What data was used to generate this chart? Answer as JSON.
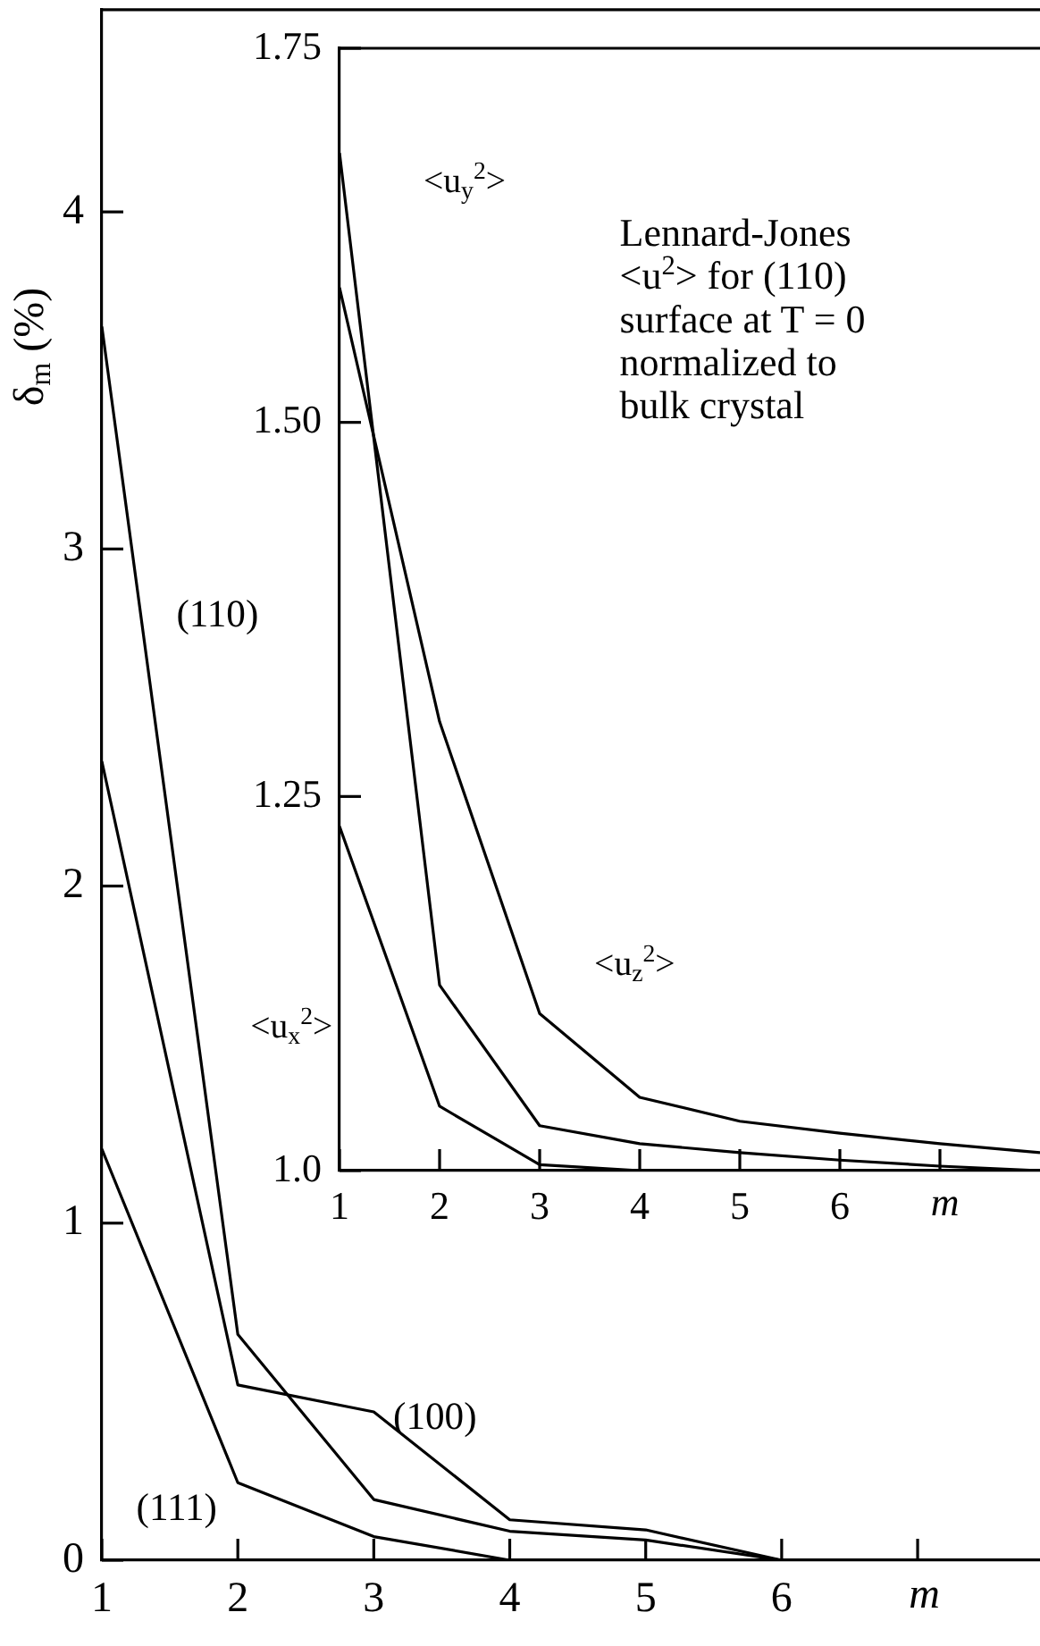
{
  "chart_data": [
    {
      "type": "line",
      "ylabel": "δ$_{m}$ (%)",
      "xlabel": "m",
      "x": [
        1,
        2,
        3,
        4,
        5,
        6,
        7,
        7.9
      ],
      "xlim": [
        1,
        7.9
      ],
      "xticks": [
        1,
        2,
        3,
        4,
        5,
        6,
        {
          "value": 7,
          "label": null
        }
      ],
      "ylim": [
        0,
        4.6
      ],
      "yticks": [
        0,
        1,
        2,
        3,
        4
      ],
      "grid": false,
      "legend": false,
      "series": [
        {
          "name": "(110)",
          "color": "#000000",
          "values": [
            3.66,
            0.67,
            0.18,
            0.086,
            0.06,
            0,
            0,
            0
          ]
        },
        {
          "name": "(100)",
          "color": "#000000",
          "values": [
            2.37,
            0.52,
            0.44,
            0.12,
            0.09,
            0,
            0,
            0
          ]
        },
        {
          "name": "(111)",
          "color": "#000000",
          "values": [
            1.22,
            0.23,
            0.07,
            0,
            0,
            0,
            0,
            0
          ]
        }
      ]
    },
    {
      "type": "line",
      "xlabel": "m",
      "x": [
        1,
        2,
        3,
        4,
        5,
        6,
        7,
        8
      ],
      "xlim": [
        1,
        8
      ],
      "xticks": [
        1,
        2,
        3,
        4,
        5,
        6,
        {
          "value": 7,
          "label": null
        }
      ],
      "ylim": [
        1,
        1.75
      ],
      "yticks": [
        {
          "value": 1,
          "label": "1.0"
        },
        1.25,
        {
          "value": 1.5,
          "label": "1.50"
        },
        1.75
      ],
      "grid": false,
      "legend": false,
      "annotations": [
        "Lennard-Jones <u$^{2}$> for (110) surface at T = 0 normalized to bulk crystal"
      ],
      "series": [
        {
          "name": "<u$_{y}$$^{2}$>",
          "color": "#000000",
          "values": [
            1.68,
            1.124,
            1.03,
            1.018,
            1.012,
            1.007,
            1.003,
            1.0
          ]
        },
        {
          "name": "<u$_{z}$$^{2}$>",
          "color": "#000000",
          "values": [
            1.59,
            1.3,
            1.105,
            1.049,
            1.033,
            1.025,
            1.018,
            1.012
          ]
        },
        {
          "name": "<u$_{x}$$^{2}$>",
          "color": "#000000",
          "values": [
            1.23,
            1.043,
            1.004,
            1.0,
            1.0,
            1.0,
            1.0,
            1.0
          ]
        }
      ]
    }
  ]
}
